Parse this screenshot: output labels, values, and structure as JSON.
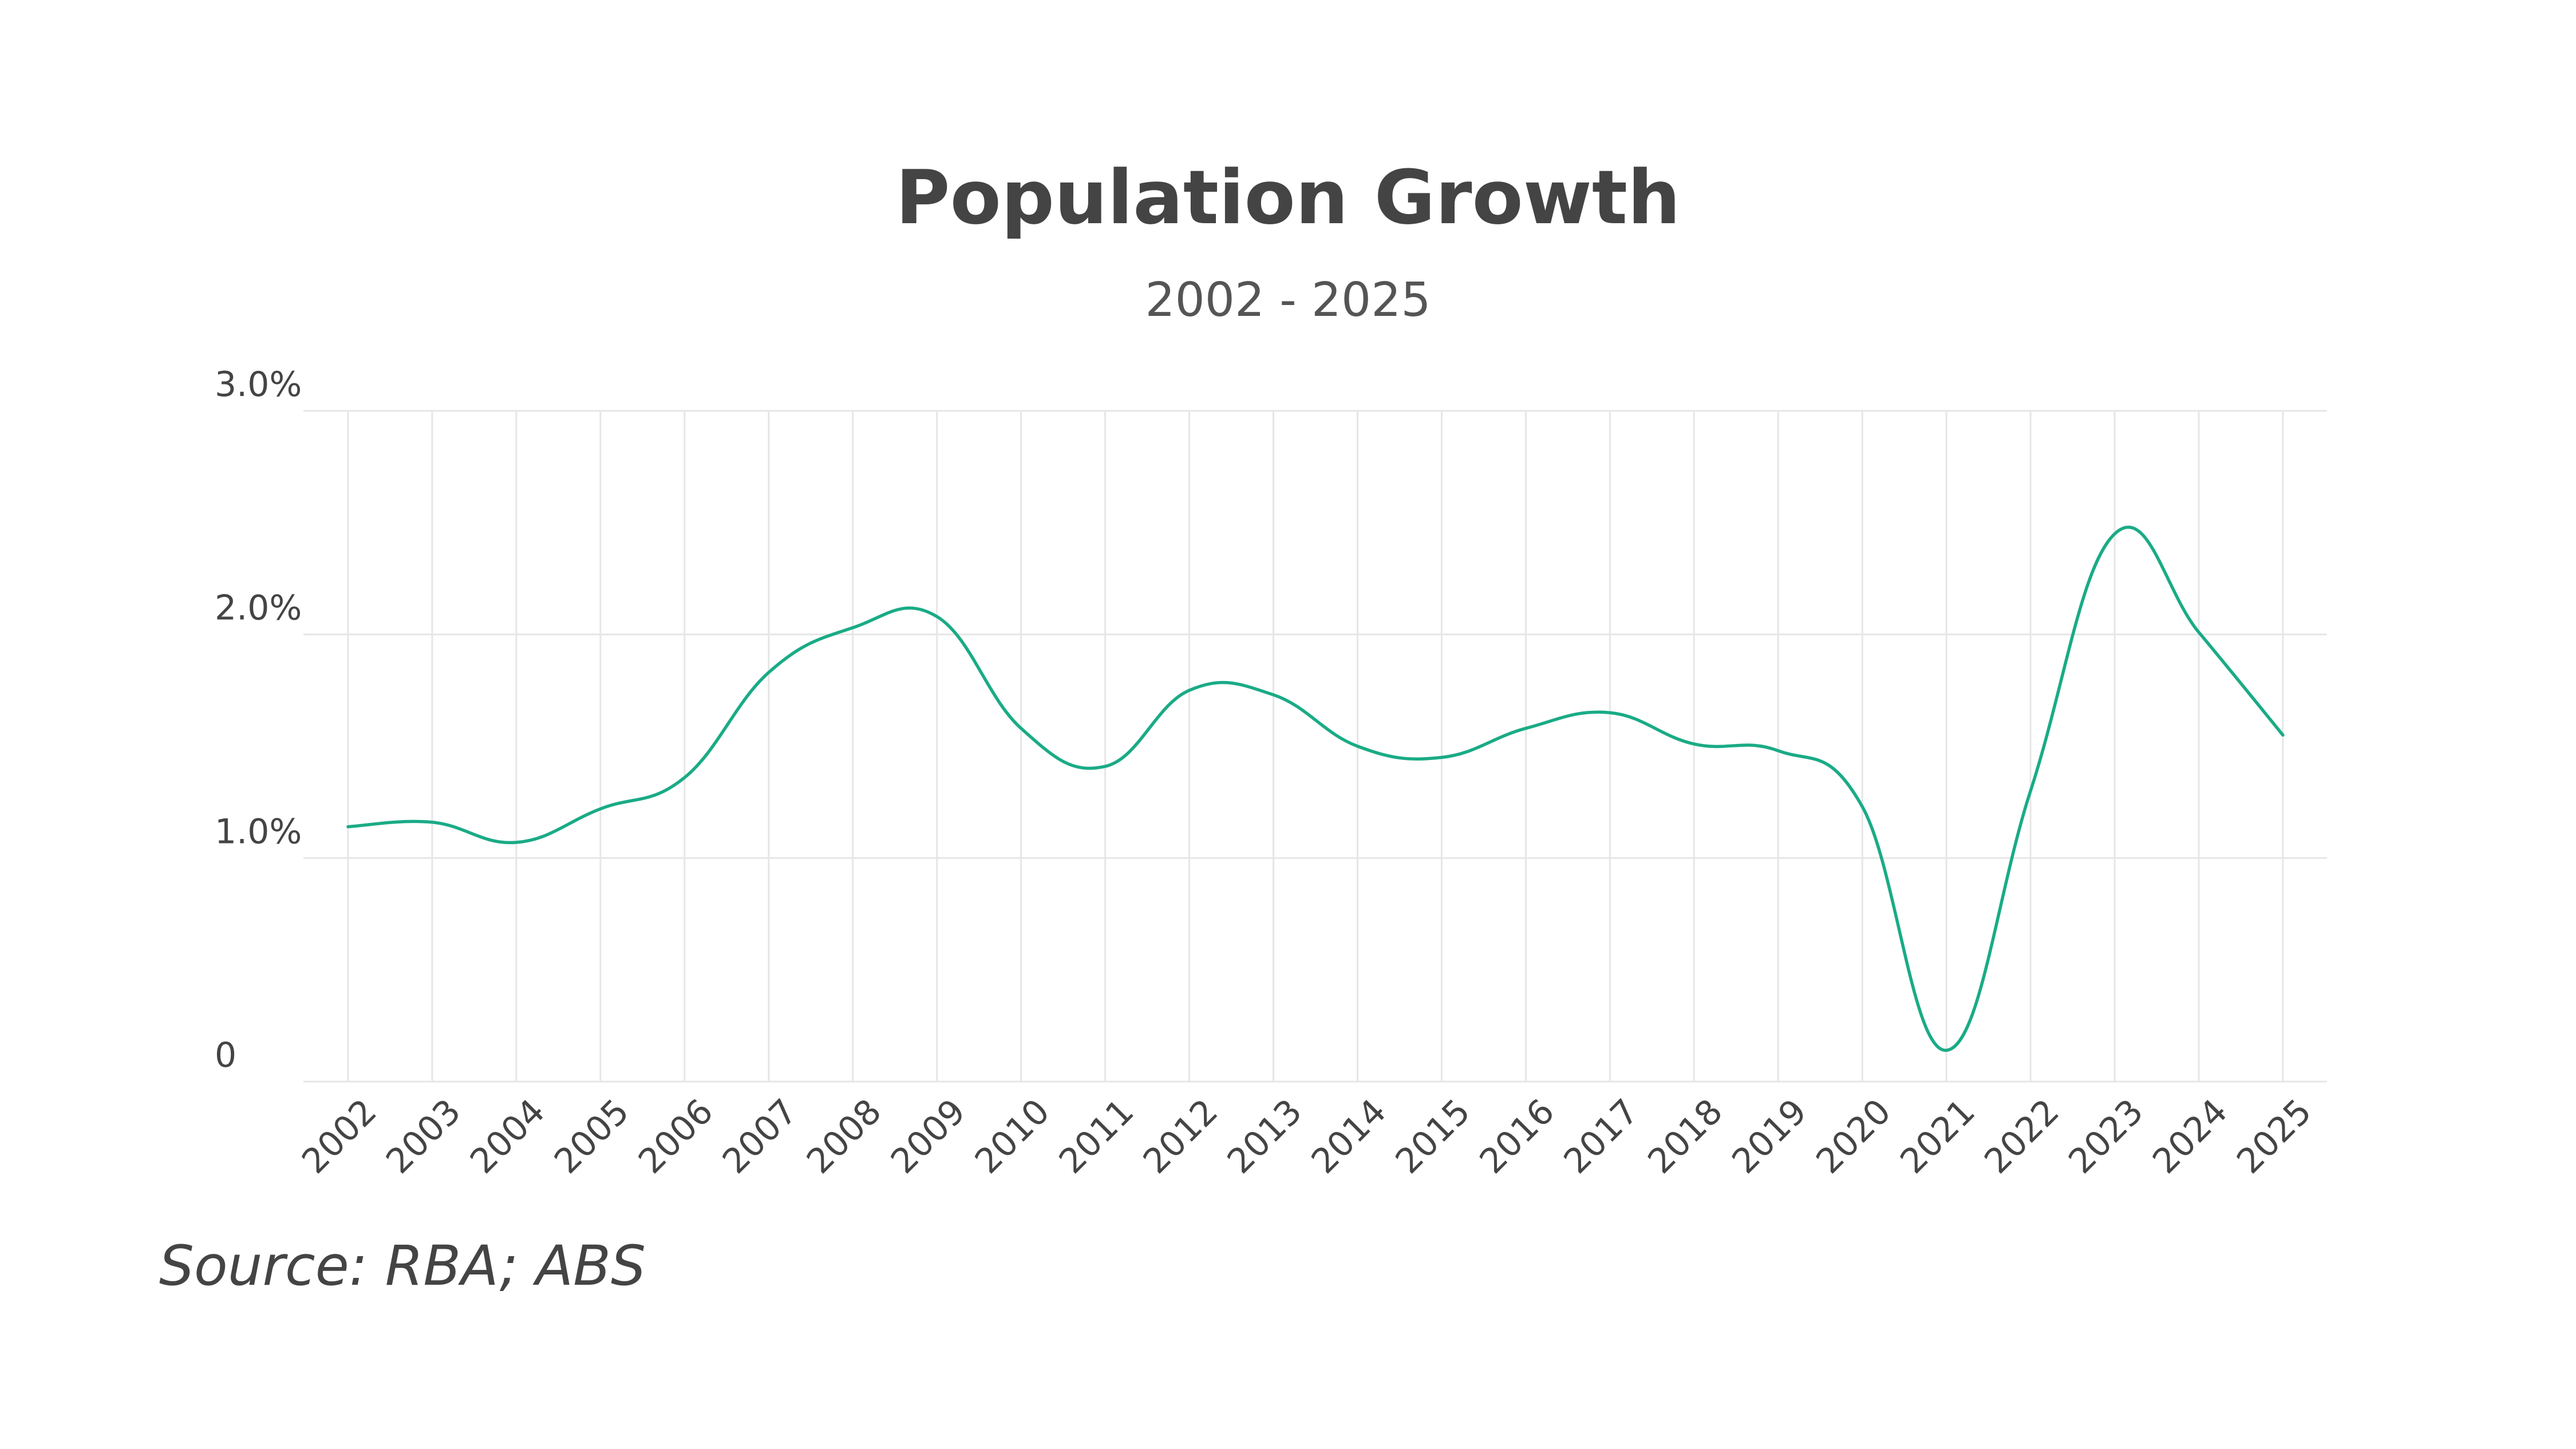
{
  "chart_data": {
    "type": "line",
    "title": "Population Growth",
    "subtitle": "2002 - 2025",
    "source": "Source: RBA; ABS",
    "xlabel": "",
    "ylabel": "",
    "categories": [
      "2002",
      "2003",
      "2004",
      "2005",
      "2006",
      "2007",
      "2008",
      "2009",
      "2010",
      "2011",
      "2012",
      "2013",
      "2014",
      "2015",
      "2016",
      "2017",
      "2018",
      "2019",
      "2020",
      "2021",
      "2022",
      "2023",
      "2024",
      "2025"
    ],
    "y_ticks": [
      {
        "value": 0,
        "label": "0"
      },
      {
        "value": 1.0,
        "label": "1.0%"
      },
      {
        "value": 2.0,
        "label": "2.0%"
      },
      {
        "value": 3.0,
        "label": "3.0%"
      }
    ],
    "ylim": [
      0,
      3.0
    ],
    "grid": true,
    "series": [
      {
        "name": "",
        "color": "#1aab86",
        "values": [
          1.14,
          1.16,
          1.07,
          1.22,
          1.36,
          1.83,
          2.03,
          2.08,
          1.58,
          1.41,
          1.75,
          1.73,
          1.5,
          1.45,
          1.58,
          1.65,
          1.51,
          1.48,
          1.23,
          0.14,
          1.3,
          2.45,
          2.01,
          1.55
        ]
      }
    ]
  }
}
